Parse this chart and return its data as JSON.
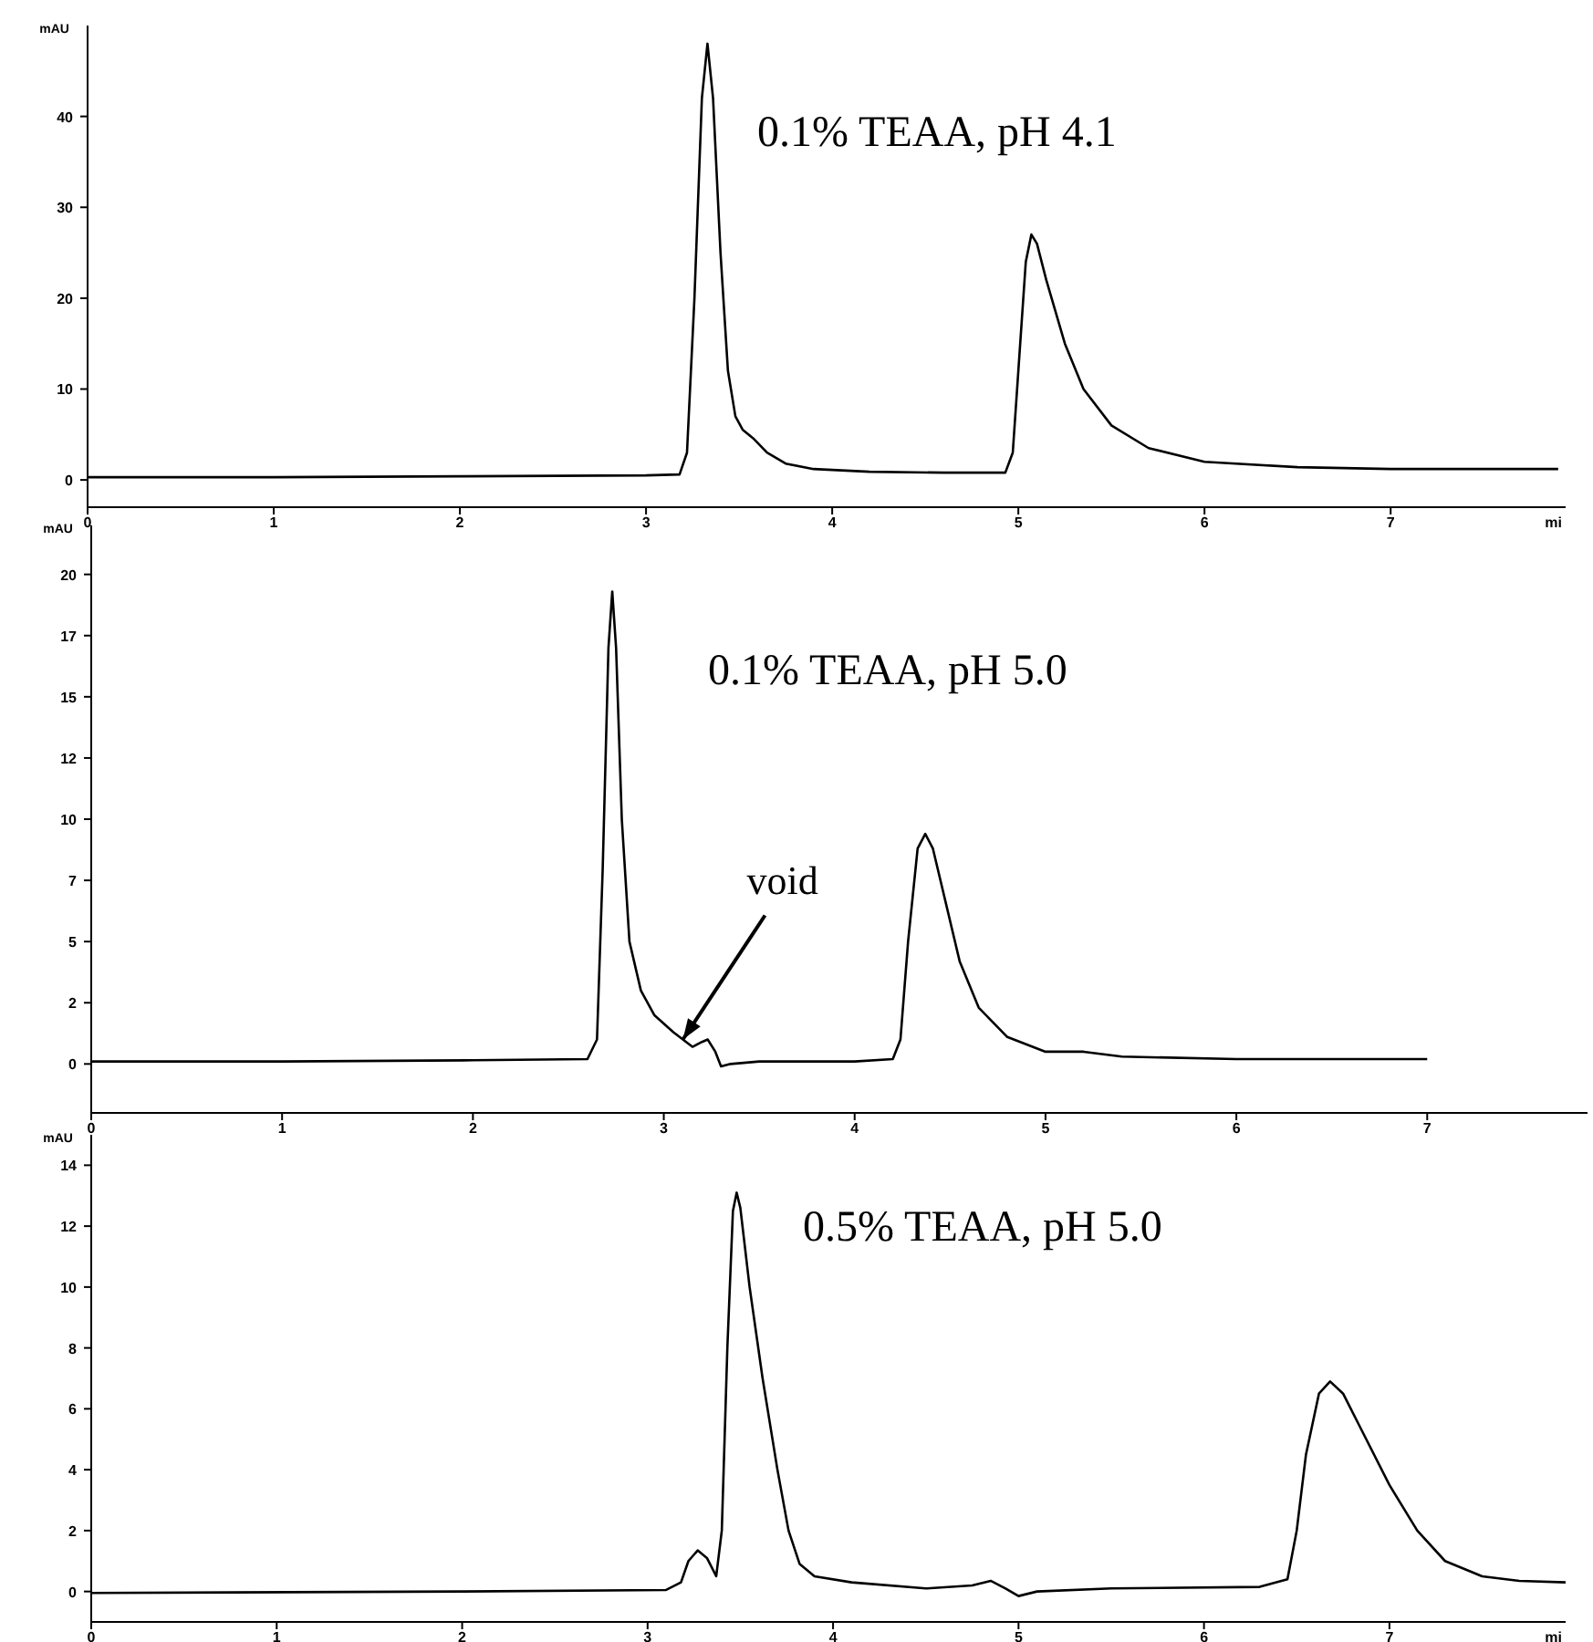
{
  "chart_data": [
    {
      "type": "line",
      "title": "0.1% TEAA, pH 4.1",
      "ylabel": "mAU",
      "xlabel": "mi",
      "xlim": [
        0,
        7.94
      ],
      "ylim": [
        -3,
        50
      ],
      "xticks": [
        0,
        1,
        2,
        3,
        4,
        5,
        6,
        7
      ],
      "yticks": [
        0,
        10,
        20,
        30,
        40
      ],
      "grid": false,
      "marker": "none",
      "line_style": "solid",
      "series": [
        {
          "color": "#000000",
          "x": [
            0,
            1,
            2,
            3,
            3.18,
            3.22,
            3.26,
            3.3,
            3.33,
            3.36,
            3.4,
            3.44,
            3.48,
            3.52,
            3.58,
            3.65,
            3.75,
            3.9,
            4.2,
            4.6,
            4.93,
            4.97,
            5.0,
            5.04,
            5.07,
            5.1,
            5.15,
            5.25,
            5.35,
            5.5,
            5.7,
            6.0,
            6.5,
            7.0,
            7.9
          ],
          "values": [
            0.3,
            0.3,
            0.4,
            0.5,
            0.6,
            3,
            20,
            42,
            48,
            42,
            25,
            12,
            7,
            5.5,
            4.5,
            3,
            1.8,
            1.2,
            0.9,
            0.8,
            0.8,
            3,
            12,
            24,
            27,
            26,
            22,
            15,
            10,
            6,
            3.5,
            2,
            1.4,
            1.2,
            1.2
          ]
        }
      ]
    },
    {
      "type": "line",
      "title": "0.1% TEAA, pH 5.0",
      "ylabel": "mAU",
      "xlim": [
        0,
        7.84
      ],
      "ylim": [
        -2,
        22
      ],
      "xticks": [
        0,
        1,
        2,
        3,
        4,
        5,
        6,
        7
      ],
      "yticks": [
        0,
        {
          "value": 2.5,
          "label": "2"
        },
        5,
        {
          "value": 7.5,
          "label": "7"
        },
        10,
        {
          "value": 12.5,
          "label": "12"
        },
        15,
        {
          "value": 17.5,
          "label": "17"
        },
        20
      ],
      "grid": false,
      "marker": "none",
      "line_style": "solid",
      "annotations": [
        {
          "text": "void",
          "x": 3.1,
          "y": 1.0
        }
      ],
      "series": [
        {
          "color": "#000000",
          "x": [
            0,
            1,
            2,
            2.6,
            2.65,
            2.68,
            2.71,
            2.73,
            2.75,
            2.78,
            2.82,
            2.88,
            2.95,
            3.05,
            3.15,
            3.2,
            3.23,
            3.27,
            3.3,
            3.35,
            3.5,
            4.0,
            4.2,
            4.24,
            4.28,
            4.33,
            4.37,
            4.41,
            4.48,
            4.55,
            4.65,
            4.8,
            5.0,
            5.2,
            5.4,
            6.0,
            7.0
          ],
          "values": [
            0.1,
            0.1,
            0.15,
            0.2,
            1,
            8,
            17,
            19.3,
            17,
            10,
            5,
            3,
            2,
            1.3,
            0.7,
            0.9,
            1.0,
            0.5,
            -0.1,
            0,
            0.1,
            0.1,
            0.2,
            1,
            5,
            8.8,
            9.4,
            8.8,
            6.5,
            4.2,
            2.3,
            1.1,
            0.5,
            0.5,
            0.3,
            0.2,
            0.2
          ]
        }
      ]
    },
    {
      "type": "line",
      "title": "0.5% TEAA, pH 5.0",
      "ylabel": "mAU",
      "xlabel": "mi",
      "xlim": [
        0,
        7.95
      ],
      "ylim": [
        -1,
        15
      ],
      "xticks": [
        0,
        1,
        2,
        3,
        4,
        5,
        6,
        7
      ],
      "yticks": [
        0,
        2,
        4,
        6,
        8,
        10,
        12,
        14
      ],
      "grid": false,
      "marker": "none",
      "line_style": "solid",
      "series": [
        {
          "color": "#000000",
          "x": [
            0,
            2,
            3.1,
            3.18,
            3.22,
            3.27,
            3.32,
            3.37,
            3.4,
            3.43,
            3.46,
            3.48,
            3.5,
            3.55,
            3.62,
            3.7,
            3.76,
            3.82,
            3.9,
            4.1,
            4.5,
            4.75,
            4.85,
            4.93,
            5.0,
            5.1,
            5.5,
            6.3,
            6.45,
            6.5,
            6.55,
            6.62,
            6.68,
            6.75,
            6.85,
            7.0,
            7.15,
            7.3,
            7.5,
            7.7,
            7.95
          ],
          "values": [
            -0.05,
            0,
            0.05,
            0.3,
            1.0,
            1.35,
            1.1,
            0.5,
            2,
            8,
            12.5,
            13.1,
            12.6,
            10,
            7,
            4,
            2,
            0.9,
            0.5,
            0.3,
            0.1,
            0.2,
            0.35,
            0.1,
            -0.15,
            0,
            0.1,
            0.15,
            0.4,
            2,
            4.5,
            6.5,
            6.9,
            6.5,
            5.3,
            3.5,
            2,
            1.0,
            0.5,
            0.35,
            0.3
          ]
        }
      ]
    }
  ]
}
